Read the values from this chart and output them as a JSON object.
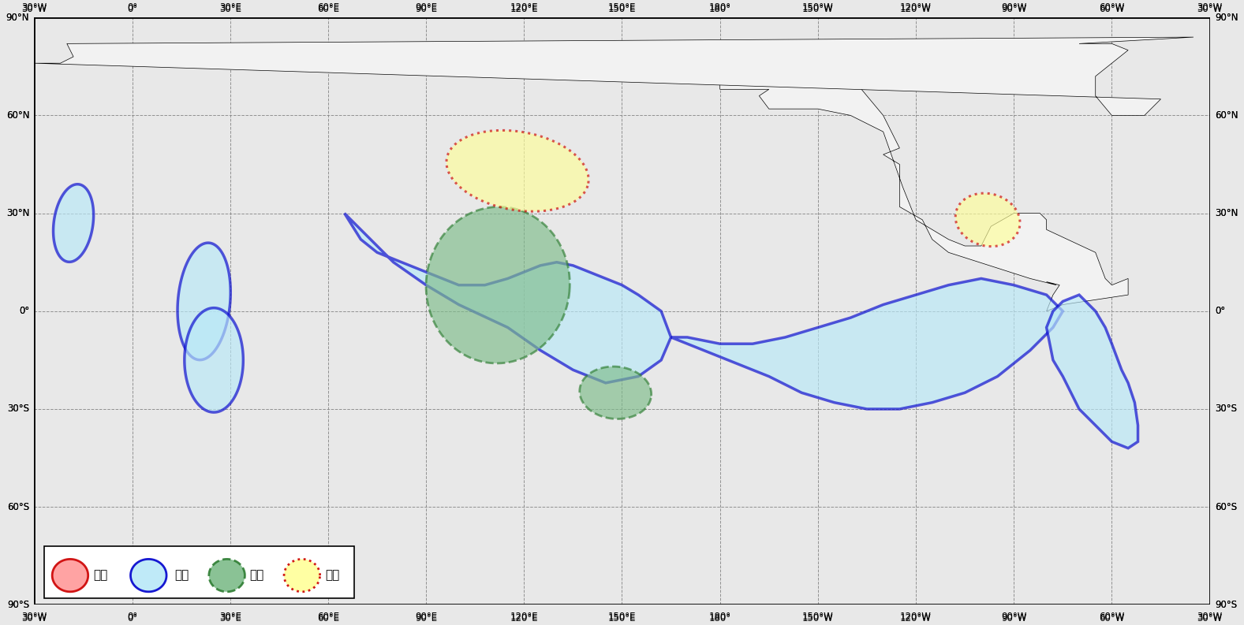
{
  "figsize": [
    15.77,
    7.93
  ],
  "dpi": 100,
  "bg_color": "#e8e8e8",
  "land_color": "#f2f2f2",
  "coastline_color": "#000000",
  "border_color": "#aaaaaa",
  "grid_color": "#888888",
  "low_temp_fill": "#b8e8f8",
  "low_temp_edge": "#0000cd",
  "high_rain_fill": "#7dbc8a",
  "high_rain_edge": "#2e7d32",
  "low_rain_fill": "#ffff99",
  "low_rain_edge": "#cc0000",
  "high_temp_fill": "#ff9999",
  "high_temp_edge": "#cc0000",
  "lon_min": -30,
  "lon_max": 330,
  "lat_min": -90,
  "lat_max": 90,
  "xticks": [
    -30,
    0,
    30,
    60,
    90,
    120,
    150,
    180,
    210,
    240,
    270,
    300,
    330
  ],
  "xlabels": [
    "30°W",
    "0°",
    "30°E",
    "60°E",
    "90°E",
    "120°E",
    "150°E",
    "180°",
    "150°W",
    "120°W",
    "90°W",
    "60°W",
    "30°W"
  ],
  "yticks": [
    -90,
    -60,
    -30,
    0,
    30,
    60,
    90
  ],
  "ylabels": [
    "90°S",
    "60°S",
    "30°S",
    "0°",
    "30°N",
    "60°N",
    "90°N"
  ]
}
